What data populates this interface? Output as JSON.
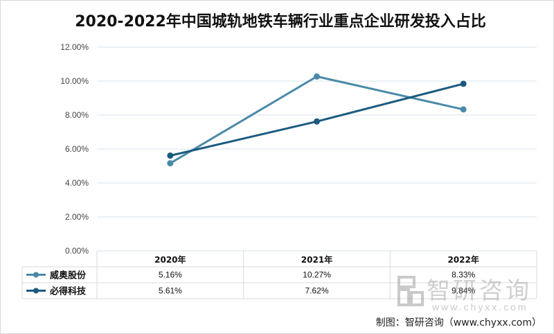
{
  "chart_data": {
    "type": "line",
    "title": "2020-2022年中国城轨地铁车辆行业重点企业研发投入占比",
    "categories": [
      "2020年",
      "2021年",
      "2022年"
    ],
    "series": [
      {
        "name": "威奥股份",
        "values": [
          5.16,
          10.27,
          8.33
        ],
        "labels": [
          "5.16%",
          "10.27%",
          "8.33%"
        ],
        "color": "#4a8aa8"
      },
      {
        "name": "必得科技",
        "values": [
          5.61,
          7.62,
          9.84
        ],
        "labels": [
          "5.61%",
          "7.62%",
          "9.84%"
        ],
        "color": "#1b5a80"
      }
    ],
    "yticks": [
      "0.00%",
      "2.00%",
      "4.00%",
      "6.00%",
      "8.00%",
      "10.00%",
      "12.00%"
    ],
    "ylim": [
      0,
      12
    ],
    "xlabel": "",
    "ylabel": "",
    "grid": true,
    "legend": "data-table"
  },
  "watermark": {
    "logo_text": "智研咨询",
    "url": "www.chyxx.com"
  },
  "source": "制图：智研咨询（www.chyxx.com）"
}
